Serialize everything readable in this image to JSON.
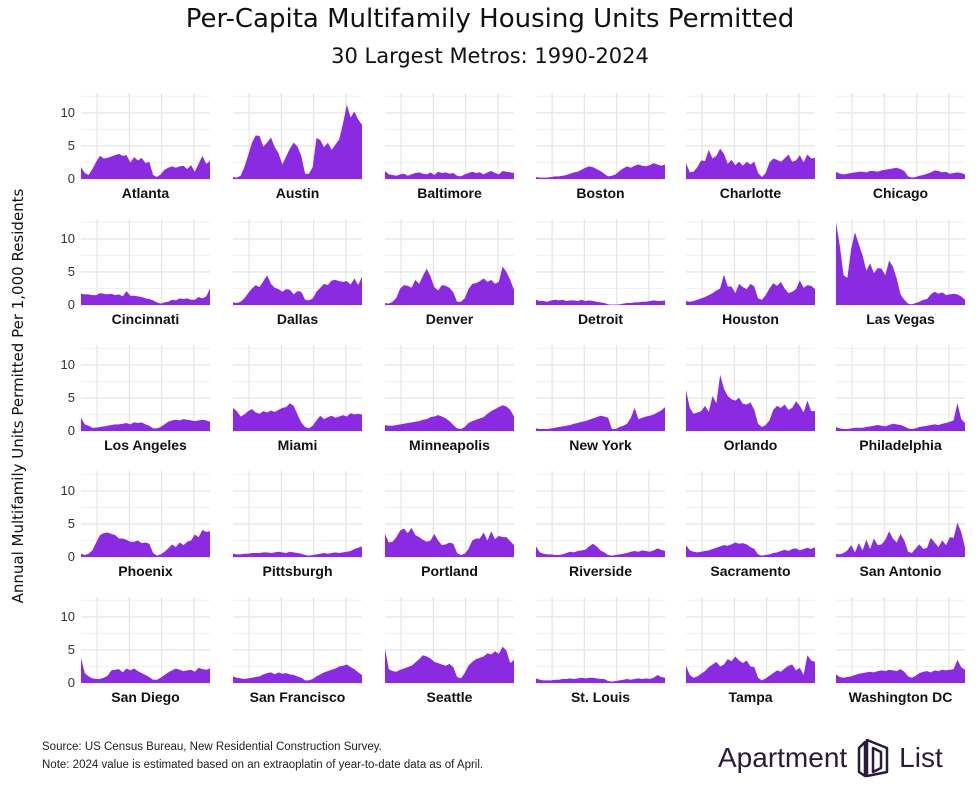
{
  "title": "Per-Capita Multifamily Housing Units Permitted",
  "subtitle": "30 Largest Metros: 1990-2024",
  "y_axis_label": "Annual Multifamily Units Permitted Per 1,000 Residents",
  "footer": {
    "source": "Source: US Census Bureau, New Residential Construction Survey.",
    "note": "Note: 2024 value is estimated based on an extraoplatin of year-to-date data as of April."
  },
  "brand": {
    "text_left": "Apartment",
    "text_right": "List",
    "logo_icon": "apartment-list-logo-icon"
  },
  "colors": {
    "fill": "#8a2be2",
    "grid": "#e6e6e6"
  },
  "chart_data": {
    "type": "area",
    "x_range": [
      1990,
      2024
    ],
    "ylim": [
      0,
      13
    ],
    "y_ticks": [
      0,
      5,
      10
    ],
    "grid": true,
    "series": [
      {
        "name": "Atlanta",
        "values": [
          1.8,
          0.9,
          0.6,
          1.5,
          2.6,
          3.5,
          3.1,
          3.2,
          3.4,
          3.6,
          3.8,
          3.5,
          3.6,
          2.5,
          3.3,
          2.8,
          3.2,
          2.4,
          2.6,
          0.6,
          0.3,
          0.7,
          1.4,
          1.7,
          1.9,
          1.7,
          1.9,
          2.0,
          1.5,
          2.1,
          1.1,
          2.3,
          3.5,
          2.3,
          2.7
        ]
      },
      {
        "name": "Austin",
        "values": [
          0.3,
          0.2,
          0.5,
          1.8,
          3.6,
          5.5,
          6.6,
          6.5,
          4.9,
          5.5,
          6.3,
          4.8,
          3.9,
          2.2,
          3.4,
          4.6,
          5.5,
          4.9,
          3.5,
          0.8,
          0.8,
          1.8,
          6.2,
          5.9,
          4.8,
          5.5,
          4.4,
          5.2,
          6.0,
          8.4,
          11.2,
          9.3,
          10.2,
          9.0,
          8.2
        ]
      },
      {
        "name": "Baltimore",
        "values": [
          1.2,
          0.7,
          0.6,
          0.5,
          0.7,
          0.8,
          0.5,
          0.7,
          0.9,
          1.0,
          0.8,
          0.7,
          1.0,
          0.6,
          1.1,
          0.9,
          1.0,
          0.8,
          0.9,
          0.5,
          0.4,
          0.7,
          0.9,
          1.1,
          0.9,
          1.0,
          0.7,
          1.0,
          1.2,
          0.9,
          0.7,
          1.2,
          1.1,
          1.0,
          0.9
        ]
      },
      {
        "name": "Boston",
        "values": [
          0.3,
          0.2,
          0.2,
          0.2,
          0.3,
          0.4,
          0.4,
          0.5,
          0.6,
          0.8,
          1.0,
          1.1,
          1.4,
          1.7,
          1.9,
          1.8,
          1.5,
          1.2,
          0.8,
          0.4,
          0.5,
          0.7,
          1.2,
          1.6,
          1.9,
          1.7,
          2.0,
          2.2,
          2.0,
          1.9,
          2.1,
          2.4,
          2.2,
          2.0,
          2.2
        ]
      },
      {
        "name": "Charlotte",
        "values": [
          2.4,
          1.0,
          1.1,
          1.8,
          2.8,
          2.7,
          4.4,
          3.1,
          3.5,
          4.6,
          3.8,
          2.3,
          2.9,
          2.1,
          2.6,
          2.0,
          2.6,
          2.2,
          2.6,
          0.9,
          0.3,
          0.9,
          2.5,
          3.1,
          2.9,
          2.6,
          3.1,
          3.7,
          2.6,
          2.8,
          3.6,
          2.5,
          3.7,
          3.1,
          3.2
        ]
      },
      {
        "name": "Chicago",
        "values": [
          1.1,
          0.8,
          0.7,
          0.8,
          0.9,
          1.0,
          1.1,
          1.1,
          1.0,
          1.2,
          1.2,
          1.1,
          1.3,
          1.4,
          1.5,
          1.6,
          1.7,
          1.5,
          1.2,
          0.4,
          0.2,
          0.3,
          0.5,
          0.6,
          0.8,
          1.0,
          1.3,
          1.2,
          1.0,
          1.1,
          0.8,
          0.9,
          1.0,
          0.9,
          0.7
        ]
      },
      {
        "name": "Cincinnati",
        "values": [
          1.7,
          1.6,
          1.6,
          1.5,
          1.5,
          1.8,
          1.7,
          1.6,
          1.7,
          1.5,
          1.6,
          1.3,
          2.1,
          1.4,
          1.4,
          1.3,
          1.2,
          1.0,
          0.9,
          0.7,
          0.4,
          0.2,
          0.4,
          0.5,
          0.8,
          0.7,
          1.0,
          0.9,
          1.0,
          0.8,
          0.8,
          1.2,
          1.0,
          1.3,
          2.5
        ]
      },
      {
        "name": "Dallas",
        "values": [
          0.4,
          0.3,
          0.5,
          1.0,
          1.8,
          2.5,
          3.0,
          2.7,
          3.6,
          4.5,
          3.2,
          2.6,
          2.4,
          2.0,
          2.4,
          2.3,
          1.6,
          2.1,
          2.0,
          0.8,
          0.7,
          1.0,
          2.0,
          2.6,
          3.2,
          3.0,
          3.7,
          3.8,
          3.6,
          3.5,
          3.6,
          3.1,
          4.0,
          3.0,
          4.3
        ]
      },
      {
        "name": "Denver",
        "values": [
          0.3,
          0.2,
          0.5,
          1.1,
          2.5,
          3.0,
          2.9,
          2.6,
          3.8,
          3.2,
          4.4,
          5.5,
          4.3,
          2.7,
          2.2,
          3.0,
          2.9,
          2.6,
          1.9,
          0.5,
          0.5,
          1.0,
          2.4,
          3.2,
          3.3,
          3.6,
          4.0,
          3.5,
          3.8,
          3.2,
          3.5,
          5.8,
          5.0,
          3.8,
          2.3
        ]
      },
      {
        "name": "Detroit",
        "values": [
          0.8,
          0.6,
          0.6,
          0.5,
          0.7,
          0.8,
          0.7,
          0.8,
          0.6,
          0.7,
          0.7,
          0.6,
          0.8,
          0.6,
          0.7,
          0.6,
          0.5,
          0.4,
          0.3,
          0.1,
          0.05,
          0.05,
          0.1,
          0.2,
          0.3,
          0.3,
          0.4,
          0.4,
          0.5,
          0.5,
          0.6,
          0.7,
          0.6,
          0.6,
          0.7
        ]
      },
      {
        "name": "Houston",
        "values": [
          0.6,
          0.5,
          0.6,
          0.8,
          1.0,
          1.2,
          1.5,
          1.8,
          2.2,
          2.5,
          4.6,
          2.8,
          2.8,
          1.8,
          3.2,
          2.7,
          2.4,
          3.2,
          2.8,
          1.0,
          0.8,
          1.5,
          2.5,
          3.3,
          2.9,
          3.5,
          2.5,
          1.8,
          2.0,
          2.4,
          3.7,
          2.6,
          3.0,
          2.9,
          2.4
        ]
      },
      {
        "name": "Las Vegas",
        "values": [
          12.5,
          9.0,
          4.5,
          4.1,
          8.5,
          11.0,
          9.2,
          7.5,
          5.2,
          6.3,
          4.8,
          5.6,
          5.5,
          4.5,
          6.7,
          5.8,
          4.0,
          1.6,
          0.8,
          0.2,
          0.1,
          0.3,
          0.5,
          0.8,
          0.9,
          1.6,
          2.0,
          1.7,
          1.9,
          1.5,
          1.6,
          1.7,
          1.6,
          1.3,
          0.8
        ]
      },
      {
        "name": "Los Angeles",
        "values": [
          2.0,
          1.0,
          0.8,
          0.5,
          0.5,
          0.6,
          0.7,
          0.8,
          0.9,
          1.0,
          1.0,
          1.1,
          1.2,
          1.0,
          1.3,
          1.2,
          1.3,
          1.0,
          0.8,
          0.4,
          0.4,
          0.6,
          1.0,
          1.4,
          1.6,
          1.7,
          1.6,
          1.8,
          1.7,
          1.6,
          1.5,
          1.6,
          1.7,
          1.6,
          1.4
        ]
      },
      {
        "name": "Miami",
        "values": [
          3.5,
          3.0,
          2.2,
          2.5,
          3.0,
          3.3,
          2.8,
          2.6,
          3.0,
          2.8,
          3.1,
          2.9,
          3.2,
          3.5,
          3.6,
          4.2,
          3.8,
          2.5,
          1.3,
          0.6,
          0.4,
          0.8,
          1.6,
          2.3,
          1.8,
          2.1,
          2.3,
          2.0,
          2.2,
          2.4,
          2.2,
          2.7,
          2.5,
          2.6,
          2.5
        ]
      },
      {
        "name": "Minneapolis",
        "values": [
          0.9,
          0.8,
          0.8,
          0.9,
          1.0,
          1.1,
          1.2,
          1.3,
          1.4,
          1.5,
          1.7,
          1.8,
          2.1,
          2.2,
          2.4,
          2.2,
          1.9,
          1.5,
          0.9,
          0.4,
          0.3,
          0.6,
          1.2,
          1.5,
          1.7,
          1.9,
          2.1,
          2.6,
          3.0,
          3.3,
          3.6,
          3.9,
          3.7,
          3.2,
          2.2
        ]
      },
      {
        "name": "New York",
        "values": [
          0.4,
          0.3,
          0.3,
          0.3,
          0.4,
          0.5,
          0.6,
          0.7,
          0.8,
          0.9,
          1.1,
          1.2,
          1.4,
          1.5,
          1.7,
          1.9,
          2.1,
          2.3,
          2.2,
          2.0,
          0.3,
          0.3,
          0.6,
          0.8,
          1.1,
          2.0,
          3.5,
          1.8,
          2.0,
          2.2,
          2.3,
          2.5,
          2.8,
          3.1,
          3.6
        ]
      },
      {
        "name": "Orlando",
        "values": [
          6.2,
          3.5,
          2.6,
          2.8,
          3.0,
          3.8,
          2.9,
          5.3,
          4.2,
          8.5,
          6.4,
          5.3,
          4.8,
          4.6,
          5.0,
          4.1,
          4.0,
          4.3,
          3.2,
          1.1,
          0.6,
          0.9,
          1.6,
          3.2,
          3.8,
          3.5,
          4.0,
          3.2,
          3.5,
          4.5,
          3.8,
          2.8,
          4.6,
          3.0,
          3.0
        ]
      },
      {
        "name": "Philadelphia",
        "values": [
          0.6,
          0.4,
          0.3,
          0.3,
          0.4,
          0.5,
          0.5,
          0.5,
          0.6,
          0.7,
          0.8,
          0.9,
          0.8,
          0.7,
          0.9,
          1.1,
          1.0,
          0.9,
          0.7,
          0.4,
          0.3,
          0.4,
          0.6,
          0.7,
          0.8,
          0.9,
          1.0,
          0.9,
          1.1,
          1.2,
          1.4,
          1.6,
          4.2,
          1.8,
          1.2
        ]
      },
      {
        "name": "Phoenix",
        "values": [
          0.5,
          0.3,
          0.5,
          1.0,
          2.2,
          3.3,
          3.6,
          3.7,
          3.5,
          3.3,
          2.8,
          2.8,
          2.6,
          2.3,
          2.3,
          2.5,
          2.1,
          2.2,
          2.0,
          0.6,
          0.2,
          0.4,
          0.8,
          1.3,
          1.9,
          1.5,
          2.2,
          1.8,
          2.3,
          2.5,
          3.4,
          3.0,
          4.1,
          3.8,
          3.9
        ]
      },
      {
        "name": "Pittsburgh",
        "values": [
          0.5,
          0.4,
          0.4,
          0.5,
          0.5,
          0.6,
          0.6,
          0.6,
          0.7,
          0.7,
          0.6,
          0.7,
          0.8,
          0.7,
          0.6,
          0.8,
          0.7,
          0.6,
          0.5,
          0.3,
          0.2,
          0.3,
          0.4,
          0.5,
          0.6,
          0.5,
          0.6,
          0.7,
          0.6,
          0.7,
          0.8,
          0.9,
          1.2,
          1.4,
          1.6
        ]
      },
      {
        "name": "Portland",
        "values": [
          3.5,
          2.2,
          2.3,
          3.0,
          4.0,
          4.3,
          3.6,
          4.4,
          3.3,
          3.0,
          2.6,
          2.3,
          2.5,
          3.5,
          2.5,
          1.8,
          1.9,
          2.2,
          2.0,
          0.6,
          0.3,
          0.5,
          1.2,
          2.5,
          2.8,
          2.8,
          3.7,
          2.5,
          3.9,
          2.7,
          3.2,
          3.0,
          3.0,
          2.4,
          1.8
        ]
      },
      {
        "name": "Riverside",
        "values": [
          1.6,
          0.7,
          0.5,
          0.4,
          0.4,
          0.3,
          0.3,
          0.4,
          0.6,
          0.8,
          0.7,
          0.9,
          1.0,
          1.1,
          1.6,
          2.0,
          1.6,
          1.0,
          0.7,
          0.3,
          0.2,
          0.3,
          0.4,
          0.5,
          0.6,
          0.8,
          0.9,
          0.8,
          1.0,
          0.9,
          0.8,
          1.0,
          1.3,
          1.1,
          0.9
        ]
      },
      {
        "name": "Sacramento",
        "values": [
          1.8,
          1.0,
          0.8,
          0.7,
          0.8,
          0.9,
          1.0,
          1.2,
          1.4,
          1.6,
          1.8,
          1.7,
          1.9,
          2.2,
          2.0,
          2.1,
          1.9,
          1.5,
          1.2,
          0.4,
          0.2,
          0.3,
          0.4,
          0.6,
          0.7,
          0.9,
          1.1,
          0.9,
          1.2,
          1.3,
          1.0,
          1.2,
          1.4,
          1.2,
          1.5
        ]
      },
      {
        "name": "San Antonio",
        "values": [
          0.5,
          0.4,
          0.6,
          1.0,
          1.8,
          0.7,
          2.1,
          1.0,
          2.6,
          1.2,
          2.8,
          1.8,
          1.9,
          2.6,
          3.9,
          2.8,
          2.2,
          3.5,
          2.5,
          0.8,
          0.6,
          1.3,
          1.9,
          1.2,
          1.4,
          2.9,
          2.2,
          1.5,
          2.5,
          1.8,
          3.0,
          2.9,
          5.2,
          3.8,
          1.4
        ]
      },
      {
        "name": "San Diego",
        "values": [
          3.8,
          1.5,
          1.0,
          0.7,
          0.6,
          0.6,
          0.8,
          1.1,
          1.9,
          2.0,
          2.1,
          1.6,
          2.2,
          1.9,
          2.2,
          1.8,
          1.5,
          1.2,
          0.9,
          0.5,
          0.5,
          0.8,
          1.2,
          1.6,
          1.9,
          2.2,
          2.0,
          1.8,
          1.9,
          2.0,
          1.7,
          2.3,
          2.1,
          2.0,
          2.2
        ]
      },
      {
        "name": "San Francisco",
        "values": [
          1.0,
          0.8,
          0.7,
          0.6,
          0.7,
          0.8,
          0.9,
          1.0,
          1.3,
          1.5,
          1.6,
          1.3,
          1.6,
          1.4,
          1.5,
          1.3,
          1.2,
          1.0,
          0.8,
          0.4,
          0.4,
          0.6,
          1.0,
          1.3,
          1.6,
          1.8,
          2.0,
          2.2,
          2.5,
          2.6,
          2.8,
          2.4,
          2.1,
          1.6,
          1.2
        ]
      },
      {
        "name": "Seattle",
        "values": [
          5.2,
          2.1,
          1.8,
          1.7,
          2.0,
          2.2,
          2.4,
          2.6,
          3.1,
          3.6,
          4.2,
          4.0,
          3.7,
          3.2,
          3.0,
          2.8,
          2.6,
          2.9,
          2.4,
          0.9,
          0.7,
          1.5,
          2.6,
          3.2,
          3.6,
          3.8,
          4.0,
          4.5,
          4.3,
          4.8,
          4.4,
          5.5,
          4.9,
          3.0,
          3.5
        ]
      },
      {
        "name": "St. Louis",
        "values": [
          0.7,
          0.5,
          0.4,
          0.4,
          0.4,
          0.5,
          0.5,
          0.6,
          0.6,
          0.7,
          0.6,
          0.7,
          0.8,
          0.7,
          0.8,
          0.8,
          0.7,
          0.6,
          0.6,
          0.3,
          0.2,
          0.3,
          0.4,
          0.5,
          0.6,
          0.5,
          0.6,
          0.7,
          0.6,
          0.7,
          0.6,
          0.8,
          1.2,
          0.9,
          0.8
        ]
      },
      {
        "name": "Tampa",
        "values": [
          2.6,
          1.2,
          0.8,
          1.0,
          1.4,
          1.8,
          2.4,
          2.8,
          3.2,
          2.5,
          2.8,
          3.6,
          3.3,
          4.0,
          3.4,
          3.0,
          3.4,
          2.5,
          2.4,
          0.8,
          0.4,
          0.7,
          1.1,
          1.5,
          1.9,
          1.7,
          2.2,
          2.6,
          2.8,
          1.9,
          2.3,
          1.2,
          4.2,
          3.4,
          3.2
        ]
      },
      {
        "name": "Washington DC",
        "values": [
          1.3,
          0.9,
          0.8,
          0.9,
          1.0,
          1.2,
          1.4,
          1.5,
          1.6,
          1.7,
          1.6,
          1.8,
          1.9,
          1.8,
          2.0,
          1.9,
          1.8,
          2.1,
          1.7,
          1.0,
          0.8,
          1.1,
          1.5,
          1.7,
          1.8,
          1.6,
          1.9,
          1.8,
          2.0,
          1.9,
          2.0,
          2.1,
          3.5,
          2.4,
          2.0
        ]
      }
    ]
  }
}
